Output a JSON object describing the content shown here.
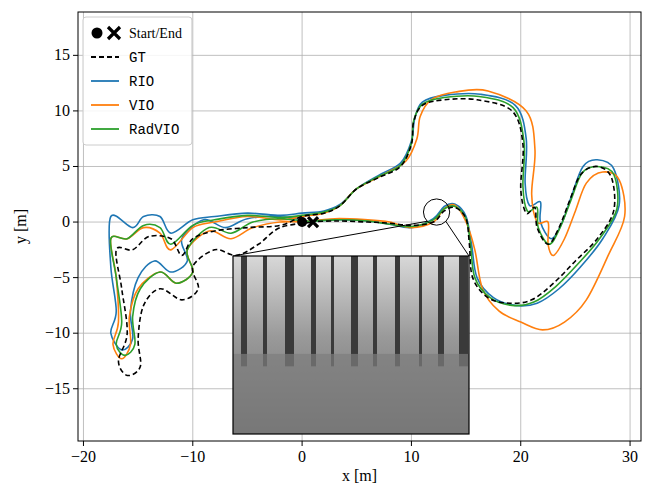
{
  "chart_data": {
    "type": "line",
    "x_label": "x [m]",
    "y_label": "y [m]",
    "xlim": [
      -20.5,
      31
    ],
    "ylim": [
      -19.7,
      18.9
    ],
    "xticks": [
      -20,
      -10,
      0,
      10,
      20,
      30
    ],
    "yticks": [
      -15,
      -10,
      -5,
      0,
      5,
      10,
      15
    ],
    "grid": true,
    "legend": "upper left",
    "markers": {
      "name": "Start/End",
      "color": "#000000",
      "start": {
        "x": 0,
        "y": 0
      },
      "end": {
        "x": 1,
        "y": 0
      }
    },
    "zoom": {
      "x": 12.3,
      "y": 0.9,
      "r": 1.2
    },
    "series": [
      {
        "name": "GT",
        "color": "#000000",
        "line_style": "dashed",
        "x": [
          0,
          3,
          6,
          8,
          10,
          12,
          13,
          14,
          15,
          15.3,
          15.6,
          17,
          19,
          21,
          23,
          25,
          27,
          28.5,
          28.3,
          27,
          25.5,
          24.5,
          23.5,
          22.5,
          21.5,
          21.3,
          20.5,
          20,
          20.2,
          19.2,
          16,
          13,
          11,
          10.2,
          10,
          9,
          7,
          5,
          3.5,
          2,
          0,
          -2,
          -5,
          -8,
          -10,
          -11,
          -12,
          -14,
          -15.5,
          -17,
          -16.5,
          -16,
          -16.8,
          -16,
          -14.8,
          -15,
          -14.5,
          -13,
          -11,
          -9.5,
          -10,
          -8,
          -6,
          -4,
          -2,
          1
        ],
        "values": [
          0,
          0.1,
          0,
          -0.1,
          -0.3,
          0,
          1,
          1.3,
          0.3,
          -2,
          -5,
          -6.8,
          -7.3,
          -7,
          -5.5,
          -3.5,
          -1.5,
          1,
          4,
          5,
          4.3,
          2,
          -0.5,
          -2,
          -0.5,
          1.3,
          0.8,
          3,
          7,
          10,
          11,
          11,
          10.5,
          9,
          7,
          5,
          4,
          3,
          1.5,
          0.8,
          0.5,
          -0.3,
          -0.5,
          -0.8,
          -1.5,
          -3,
          -1.5,
          -1.3,
          -2.5,
          -2.5,
          -6,
          -10,
          -12.5,
          -13.8,
          -13,
          -10.5,
          -7.5,
          -6,
          -7,
          -6,
          -4,
          -2.5,
          -3,
          -2,
          -0.5,
          0
        ]
      },
      {
        "name": "RIO",
        "color": "#1f77b4",
        "line_style": "solid",
        "x": [
          0,
          3,
          6,
          8,
          10,
          12,
          13,
          14,
          15,
          15.5,
          16,
          17.5,
          19.5,
          21.5,
          23.5,
          25.5,
          27.5,
          29,
          28.5,
          27,
          25.7,
          24.7,
          23.8,
          22.8,
          21.8,
          21.8,
          20.8,
          20.4,
          20.5,
          19.5,
          16.3,
          13,
          11,
          10.3,
          10,
          9,
          7,
          5,
          3.5,
          2,
          0,
          -2,
          -5,
          -8,
          -10,
          -12,
          -13,
          -14.5,
          -15.5,
          -17.5,
          -17.5,
          -17,
          -17.5,
          -16.5,
          -15.5,
          -15.7,
          -15,
          -13.5,
          -12,
          -10.5,
          -11,
          -9,
          -7,
          -5,
          -2,
          1
        ],
        "values": [
          0,
          0.2,
          0.1,
          -0.2,
          -0.5,
          0.3,
          1.4,
          1.6,
          0.5,
          -2,
          -5,
          -6.8,
          -7.5,
          -7.3,
          -6,
          -4,
          -1.5,
          1.5,
          4.8,
          5.6,
          5,
          2.5,
          0,
          -1.5,
          0,
          1.8,
          1.5,
          3.5,
          7.5,
          10.5,
          11.5,
          11.4,
          10.8,
          9.3,
          7.3,
          5.3,
          4.2,
          3,
          1.6,
          1,
          0.8,
          0.6,
          0.8,
          0.5,
          0.2,
          -1,
          0.5,
          0.5,
          -0.5,
          0.5,
          -4,
          -8,
          -10,
          -11.5,
          -10.5,
          -8,
          -5,
          -3.5,
          -4.5,
          -3.5,
          -1.5,
          0.2,
          -0.5,
          0.3,
          0.5,
          0
        ]
      },
      {
        "name": "VIO",
        "color": "#ff7f0e",
        "line_style": "solid",
        "x": [
          0,
          3,
          6,
          8,
          10,
          12,
          13,
          14,
          15,
          15.8,
          16.5,
          18,
          20,
          22,
          24,
          26,
          28,
          29.5,
          29,
          27.5,
          26,
          25,
          24,
          23,
          22.5,
          22.5,
          21.5,
          21,
          21.3,
          20.5,
          17,
          14,
          11.8,
          10.8,
          10.5,
          9.5,
          7.5,
          5,
          3.5,
          2,
          0,
          -2,
          -5,
          -8,
          -10,
          -12,
          -13,
          -14.5,
          -16,
          -17.5,
          -17,
          -16.8,
          -17.3,
          -16.5,
          -15.7,
          -15.8,
          -15,
          -13,
          -11.5,
          -10,
          -10.5,
          -8.5,
          -6.5,
          -4.5,
          -2,
          1
        ],
        "values": [
          0,
          0.3,
          0.2,
          0,
          -0.5,
          0,
          1.2,
          1.5,
          0,
          -2.5,
          -6,
          -8,
          -9,
          -9.7,
          -9,
          -7,
          -3,
          0.5,
          3.8,
          4.5,
          3.5,
          1,
          -1.5,
          -3,
          -2,
          0,
          0,
          2.5,
          6.5,
          10,
          11.8,
          11.7,
          11,
          9.5,
          7.5,
          5.5,
          4.3,
          3,
          1.5,
          0.8,
          0.5,
          0.2,
          0.5,
          0,
          -0.5,
          -2.5,
          -1,
          -0.5,
          -1.5,
          -1.5,
          -5,
          -9,
          -11,
          -12.3,
          -11,
          -8.5,
          -6,
          -4.5,
          -5.5,
          -4.5,
          -2.5,
          -0.8,
          -1.5,
          -0.5,
          0,
          0
        ]
      },
      {
        "name": "RadVIO",
        "color": "#2ca02c",
        "line_style": "solid",
        "x": [
          0,
          3,
          6,
          8,
          10,
          12,
          13,
          14,
          15,
          15.4,
          15.8,
          17.2,
          19.2,
          21.2,
          23.2,
          25.2,
          27.2,
          28.8,
          28.5,
          27,
          25.6,
          24.6,
          23.6,
          22.6,
          21.6,
          21.5,
          20.6,
          20.2,
          20.3,
          19.3,
          16.2,
          13,
          11,
          10.2,
          10,
          9,
          7,
          5,
          3.5,
          2,
          0,
          -2,
          -5,
          -8,
          -10,
          -12,
          -13,
          -14.5,
          -16,
          -17.5,
          -17,
          -16.5,
          -17,
          -16.2,
          -15.3,
          -15.5,
          -14.8,
          -13,
          -11.5,
          -10,
          -10.5,
          -8.5,
          -6.5,
          -4.5,
          -2,
          1
        ],
        "values": [
          0,
          0.2,
          0.1,
          -0.2,
          -0.4,
          0.2,
          1.2,
          1.4,
          0.3,
          -2,
          -5,
          -6.8,
          -7.5,
          -7.2,
          -5.8,
          -3.8,
          -1.5,
          1.2,
          4.3,
          5,
          4.4,
          2,
          -0.5,
          -2,
          -0.5,
          1.3,
          1,
          3.2,
          7.2,
          10.3,
          11.3,
          11.2,
          10.6,
          9.1,
          7.1,
          5.1,
          4.1,
          3,
          1.5,
          0.9,
          0.6,
          0.4,
          0.6,
          0.2,
          -0.3,
          -2,
          -0.5,
          -0.3,
          -1.5,
          -1.5,
          -5,
          -9,
          -11,
          -12,
          -11,
          -8.5,
          -6,
          -4.5,
          -5.5,
          -4.5,
          -2.5,
          -0.5,
          -1,
          0,
          0.3,
          0
        ]
      }
    ]
  }
}
